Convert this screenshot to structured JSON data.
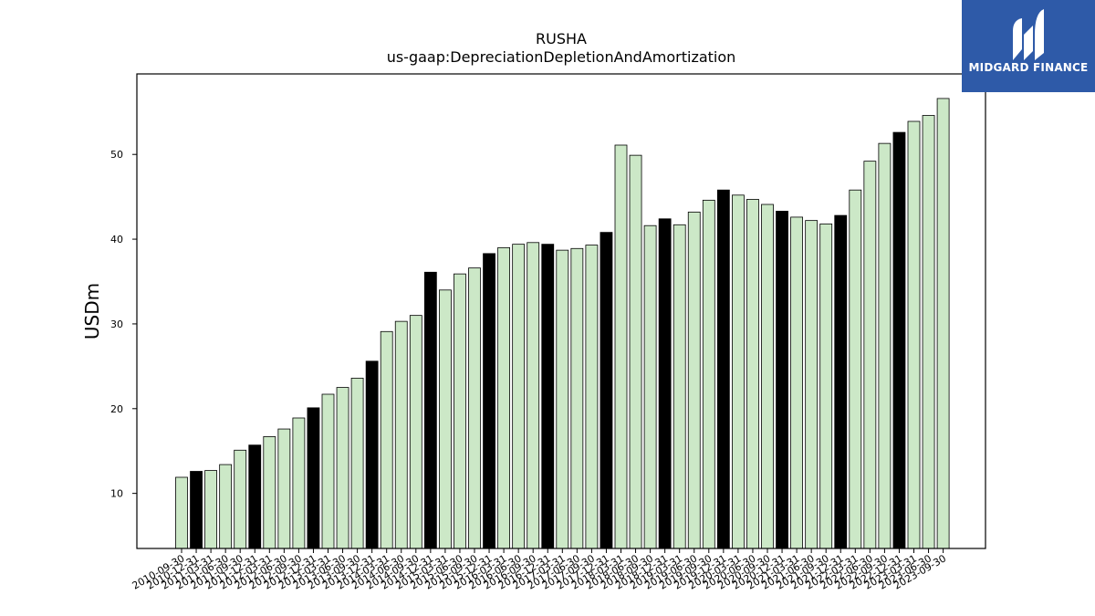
{
  "chart_data": {
    "type": "bar",
    "title": "RUSHA",
    "subtitle": "us-gaap:DepreciationDepletionAndAmortization",
    "ylabel": "USDm",
    "xlabel": "",
    "ylim": [
      3.5,
      59.5
    ],
    "yticks": [
      10,
      20,
      30,
      40,
      50
    ],
    "grid": false,
    "colors": {
      "q4": "#000000",
      "other": "#cce8c7",
      "edge": "#000000"
    },
    "categories": [
      "2010-09-30",
      "2010-12-31",
      "2011-03-31",
      "2011-06-30",
      "2011-09-30",
      "2011-12-31",
      "2012-03-31",
      "2012-06-30",
      "2012-09-30",
      "2012-12-31",
      "2013-03-31",
      "2013-06-30",
      "2013-09-30",
      "2013-12-31",
      "2014-03-31",
      "2014-06-30",
      "2014-09-30",
      "2014-12-31",
      "2015-03-31",
      "2015-06-30",
      "2015-09-30",
      "2015-12-31",
      "2016-03-31",
      "2016-06-30",
      "2016-09-30",
      "2016-12-31",
      "2017-03-31",
      "2017-06-30",
      "2017-09-30",
      "2017-12-31",
      "2018-03-31",
      "2018-06-30",
      "2018-09-30",
      "2018-12-31",
      "2019-03-31",
      "2019-06-30",
      "2019-09-30",
      "2019-12-31",
      "2020-03-31",
      "2020-06-30",
      "2020-09-30",
      "2020-12-31",
      "2021-03-31",
      "2021-06-30",
      "2021-09-30",
      "2021-12-31",
      "2022-03-31",
      "2022-06-30",
      "2022-09-30",
      "2022-12-31",
      "2023-03-31",
      "2023-06-30",
      "2023-09-30"
    ],
    "values": [
      11.9,
      12.6,
      12.7,
      13.4,
      15.1,
      15.7,
      16.7,
      17.6,
      18.9,
      20.1,
      21.7,
      22.5,
      23.6,
      25.6,
      29.1,
      30.3,
      31.0,
      36.1,
      34.0,
      35.9,
      36.6,
      38.3,
      39.0,
      39.4,
      39.6,
      39.4,
      38.7,
      38.9,
      39.3,
      40.8,
      51.1,
      49.9,
      41.6,
      42.4,
      41.7,
      43.2,
      44.6,
      45.8,
      45.2,
      44.7,
      44.1,
      43.3,
      42.6,
      42.2,
      41.8,
      42.8,
      45.8,
      49.2,
      51.3,
      52.6,
      53.9,
      54.6,
      56.6
    ],
    "highlight": [
      false,
      true,
      false,
      false,
      false,
      true,
      false,
      false,
      false,
      true,
      false,
      false,
      false,
      true,
      false,
      false,
      false,
      true,
      false,
      false,
      false,
      true,
      false,
      false,
      false,
      true,
      false,
      false,
      false,
      true,
      false,
      false,
      false,
      true,
      false,
      false,
      false,
      true,
      false,
      false,
      false,
      true,
      false,
      false,
      false,
      true,
      false,
      false,
      false,
      true,
      false,
      false,
      false
    ]
  },
  "logo": {
    "text": "MIDGARD FINANCE",
    "bg_color": "#2e5aa8"
  }
}
